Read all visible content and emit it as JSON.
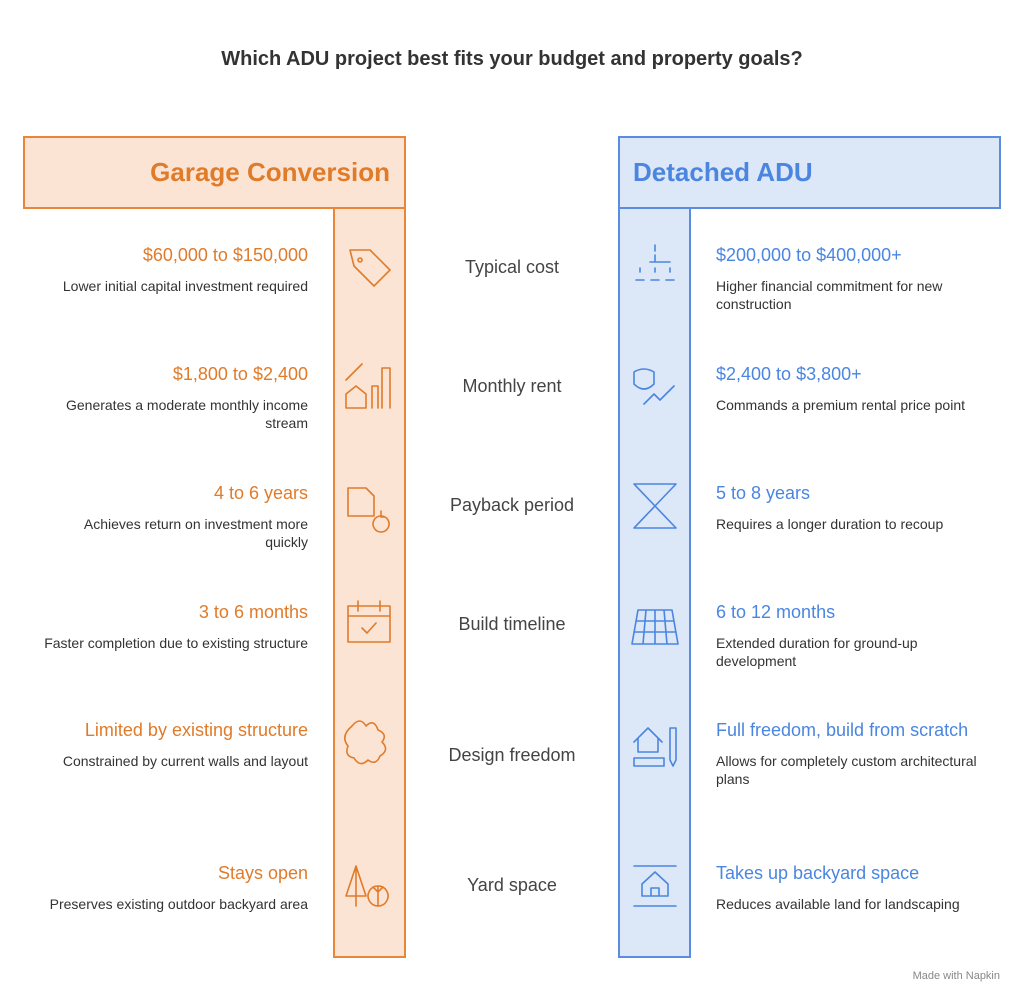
{
  "title": "Which ADU project best fits your budget and property goals?",
  "left": {
    "heading": "Garage Conversion"
  },
  "right": {
    "heading": "Detached ADU"
  },
  "rows": [
    {
      "criterion": "Typical cost",
      "left_value": "$60,000 to $150,000",
      "left_description": "Lower initial capital investment required",
      "right_value": "$200,000 to $400,000+",
      "right_description": "Higher financial commitment for new construction"
    },
    {
      "criterion": "Monthly rent",
      "left_value": "$1,800 to $2,400",
      "left_description": "Generates a moderate monthly income stream",
      "right_value": "$2,400 to $3,800+",
      "right_description": "Commands a premium rental price point"
    },
    {
      "criterion": "Payback period",
      "left_value": "4 to 6 years",
      "left_description": "Achieves return on investment more quickly",
      "right_value": "5 to 8 years",
      "right_description": "Requires a longer duration to recoup"
    },
    {
      "criterion": "Build timeline",
      "left_value": "3 to 6 months",
      "left_description": "Faster completion due to existing structure",
      "right_value": "6 to 12 months",
      "right_description": "Extended duration for ground-up development"
    },
    {
      "criterion": "Design freedom",
      "left_value": "Limited by existing structure",
      "left_description": "Constrained by current walls and layout",
      "right_value": "Full freedom, build from scratch",
      "right_description": "Allows for completely custom architectural plans"
    },
    {
      "criterion": "Yard space",
      "left_value": "Stays open",
      "left_description": "Preserves existing outdoor backyard area",
      "right_value": "Takes up backyard space",
      "right_description": "Reduces available land for landscaping"
    }
  ],
  "footer": "Made with Napkin"
}
